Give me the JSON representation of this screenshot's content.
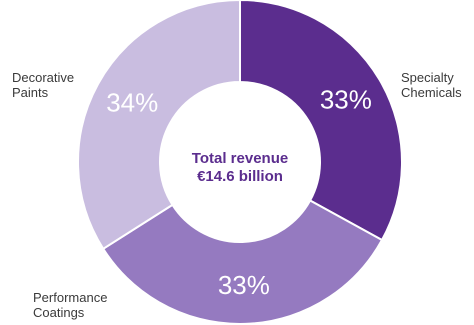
{
  "chart_data": {
    "type": "pie",
    "donut": true,
    "title": "",
    "center_label": {
      "line1": "Total revenue",
      "line2": "€14.6 billion"
    },
    "slices": [
      {
        "label_line1": "Specialty",
        "label_line2": "Chemicals",
        "value": 33,
        "display": "33%",
        "color": "#5b2d8e"
      },
      {
        "label_line1": "Performance",
        "label_line2": "Coatings",
        "value": 33,
        "display": "33%",
        "color": "#957ac0"
      },
      {
        "label_line1": "Decorative",
        "label_line2": "Paints",
        "value": 34,
        "display": "34%",
        "color": "#c9bde0"
      }
    ],
    "start_angle_deg": 0,
    "direction": "clockwise",
    "slice_text_color": "#ffffff",
    "center_text_color": "#5b2d8e",
    "separator_color": "#ffffff"
  }
}
